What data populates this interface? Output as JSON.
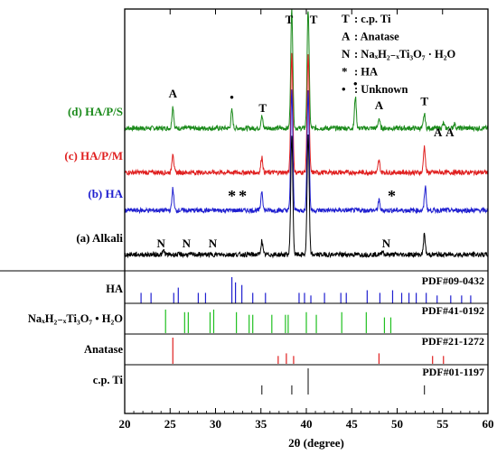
{
  "chart_data": {
    "type": "line",
    "xlabel": "2θ (degree)",
    "xlim": [
      20,
      60
    ],
    "x_ticks": [
      20,
      25,
      30,
      35,
      40,
      45,
      50,
      55,
      60
    ],
    "series": [
      {
        "name": "(d) HA/P/S",
        "color": "#1a8a1a",
        "baseline": 1.0,
        "peaks": [
          {
            "x": 25.3,
            "h": 0.55
          },
          {
            "x": 31.8,
            "h": 0.45
          },
          {
            "x": 35.1,
            "h": 0.3
          },
          {
            "x": 38.4,
            "h": 3.0
          },
          {
            "x": 40.2,
            "h": 3.0
          },
          {
            "x": 45.4,
            "h": 0.8
          },
          {
            "x": 48.0,
            "h": 0.25
          },
          {
            "x": 53.0,
            "h": 0.35
          },
          {
            "x": 55.1,
            "h": 0.12
          },
          {
            "x": 56.3,
            "h": 0.12
          }
        ]
      },
      {
        "name": "(c) HA/P/M",
        "color": "#e02020",
        "baseline": 1.0,
        "peaks": [
          {
            "x": 25.3,
            "h": 0.5
          },
          {
            "x": 35.1,
            "h": 0.4
          },
          {
            "x": 38.4,
            "h": 3.0
          },
          {
            "x": 40.2,
            "h": 3.0
          },
          {
            "x": 48.0,
            "h": 0.3
          },
          {
            "x": 53.0,
            "h": 0.65
          }
        ]
      },
      {
        "name": "(b) HA",
        "color": "#2020d0",
        "baseline": 1.0,
        "peaks": [
          {
            "x": 25.3,
            "h": 0.55
          },
          {
            "x": 35.1,
            "h": 0.5
          },
          {
            "x": 38.4,
            "h": 3.0
          },
          {
            "x": 40.2,
            "h": 3.0
          },
          {
            "x": 48.0,
            "h": 0.25
          },
          {
            "x": 53.1,
            "h": 0.6
          }
        ]
      },
      {
        "name": "(a) Alkali",
        "color": "#000000",
        "baseline": 1.0,
        "peaks": [
          {
            "x": 24.3,
            "h": 0.1
          },
          {
            "x": 35.1,
            "h": 0.35
          },
          {
            "x": 38.4,
            "h": 3.0
          },
          {
            "x": 40.2,
            "h": 3.0
          },
          {
            "x": 48.4,
            "h": 0.1
          },
          {
            "x": 53.0,
            "h": 0.5
          }
        ]
      }
    ],
    "legend": [
      {
        "symbol": "T",
        "text": "c.p. Ti"
      },
      {
        "symbol": "A",
        "text": "Anatase"
      },
      {
        "symbol": "N",
        "text": "NaₓH₂₋ₓTi₃O₇ · H₂O"
      },
      {
        "symbol": "*",
        "text": "HA"
      },
      {
        "symbol": "•",
        "text": "Unknown"
      }
    ],
    "annotations": [
      {
        "series": 0,
        "text": "A",
        "x": 25.3
      },
      {
        "series": 0,
        "text": "•",
        "x": 31.8
      },
      {
        "series": 0,
        "text": "T",
        "x": 35.2
      },
      {
        "series": 0,
        "text": "T",
        "x": 38.1
      },
      {
        "series": 0,
        "text": "T",
        "x": 40.8
      },
      {
        "series": 0,
        "text": "•",
        "x": 45.4
      },
      {
        "series": 0,
        "text": "A",
        "x": 48.0
      },
      {
        "series": 0,
        "text": "T",
        "x": 53.0
      },
      {
        "series": 0,
        "text": "A",
        "x": 54.5
      },
      {
        "series": 0,
        "text": "A",
        "x": 55.8
      },
      {
        "series": 2,
        "text": "*",
        "x": 31.8
      },
      {
        "series": 2,
        "text": "*",
        "x": 33.0
      },
      {
        "series": 2,
        "text": "*",
        "x": 49.4
      },
      {
        "series": 3,
        "text": "N",
        "x": 24.0
      },
      {
        "series": 3,
        "text": "N",
        "x": 26.8
      },
      {
        "series": 3,
        "text": "N",
        "x": 29.7
      },
      {
        "series": 3,
        "text": "N",
        "x": 48.8
      }
    ],
    "reference_panels": [
      {
        "label": "HA",
        "pdf": "PDF#09-0432",
        "color": "#2020d0",
        "lines": [
          {
            "x": 21.8,
            "i": 0.4
          },
          {
            "x": 22.9,
            "i": 0.4
          },
          {
            "x": 25.4,
            "i": 0.4
          },
          {
            "x": 25.9,
            "i": 0.6
          },
          {
            "x": 28.1,
            "i": 0.4
          },
          {
            "x": 28.9,
            "i": 0.4
          },
          {
            "x": 31.8,
            "i": 1.0
          },
          {
            "x": 32.2,
            "i": 0.8
          },
          {
            "x": 32.9,
            "i": 0.7
          },
          {
            "x": 34.1,
            "i": 0.4
          },
          {
            "x": 35.5,
            "i": 0.4
          },
          {
            "x": 39.2,
            "i": 0.4
          },
          {
            "x": 39.8,
            "i": 0.4
          },
          {
            "x": 40.5,
            "i": 0.3
          },
          {
            "x": 42.0,
            "i": 0.4
          },
          {
            "x": 43.8,
            "i": 0.4
          },
          {
            "x": 44.4,
            "i": 0.4
          },
          {
            "x": 46.7,
            "i": 0.5
          },
          {
            "x": 48.1,
            "i": 0.4
          },
          {
            "x": 49.5,
            "i": 0.5
          },
          {
            "x": 50.5,
            "i": 0.4
          },
          {
            "x": 51.3,
            "i": 0.4
          },
          {
            "x": 52.1,
            "i": 0.4
          },
          {
            "x": 53.2,
            "i": 0.4
          },
          {
            "x": 54.4,
            "i": 0.3
          },
          {
            "x": 55.9,
            "i": 0.3
          },
          {
            "x": 57.1,
            "i": 0.3
          },
          {
            "x": 58.1,
            "i": 0.3
          }
        ]
      },
      {
        "label": "NaₓH₂₋ₓTi₃O₇ • H₂O",
        "pdf": "PDF#41-0192",
        "color": "#20c020",
        "lines": [
          {
            "x": 24.5,
            "i": 0.9
          },
          {
            "x": 26.6,
            "i": 0.8
          },
          {
            "x": 27.0,
            "i": 0.8
          },
          {
            "x": 29.4,
            "i": 0.8
          },
          {
            "x": 29.8,
            "i": 0.9
          },
          {
            "x": 32.3,
            "i": 0.8
          },
          {
            "x": 33.7,
            "i": 0.7
          },
          {
            "x": 34.1,
            "i": 0.7
          },
          {
            "x": 36.2,
            "i": 0.7
          },
          {
            "x": 37.7,
            "i": 0.7
          },
          {
            "x": 38.0,
            "i": 0.7
          },
          {
            "x": 40.0,
            "i": 0.8
          },
          {
            "x": 41.1,
            "i": 0.7
          },
          {
            "x": 43.9,
            "i": 0.8
          },
          {
            "x": 46.6,
            "i": 0.8
          },
          {
            "x": 48.6,
            "i": 0.6
          },
          {
            "x": 49.3,
            "i": 0.6
          }
        ]
      },
      {
        "label": "Anatase",
        "pdf": "PDF#21-1272",
        "color": "#e02020",
        "lines": [
          {
            "x": 25.3,
            "i": 1.0
          },
          {
            "x": 36.9,
            "i": 0.3
          },
          {
            "x": 37.8,
            "i": 0.4
          },
          {
            "x": 38.6,
            "i": 0.3
          },
          {
            "x": 48.0,
            "i": 0.4
          },
          {
            "x": 53.9,
            "i": 0.3
          },
          {
            "x": 55.1,
            "i": 0.3
          }
        ]
      },
      {
        "label": "c.p. Ti",
        "pdf": "PDF#01-1197",
        "color": "#333333",
        "lines": [
          {
            "x": 35.1,
            "i": 0.35
          },
          {
            "x": 38.4,
            "i": 0.35
          },
          {
            "x": 40.2,
            "i": 1.0
          },
          {
            "x": 53.0,
            "i": 0.35
          }
        ]
      }
    ]
  }
}
